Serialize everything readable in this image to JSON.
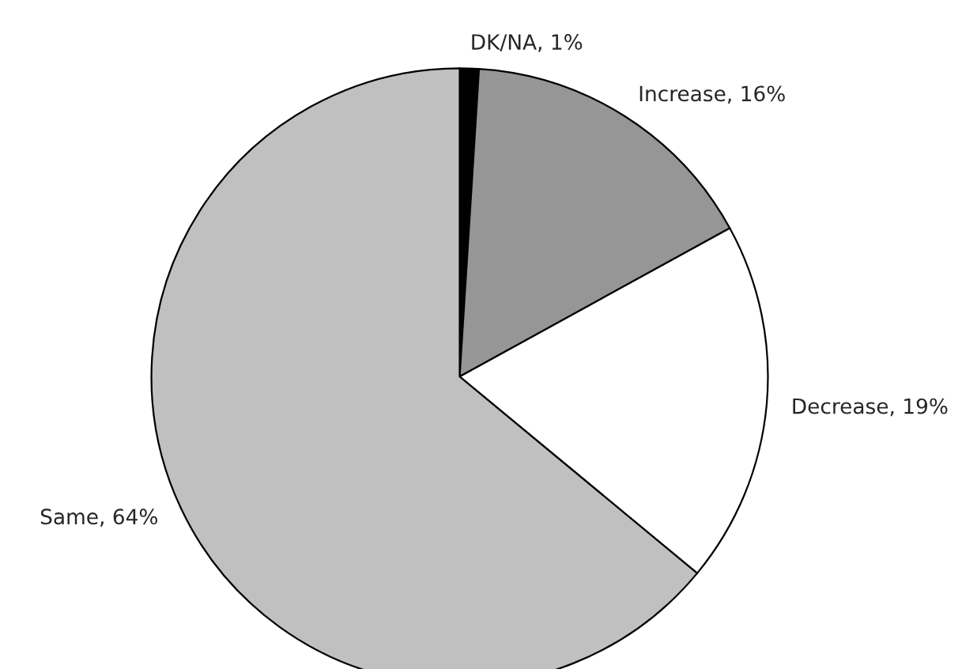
{
  "chart_data": {
    "type": "pie",
    "categories": [
      "DK/NA",
      "Increase",
      "Decrease",
      "Same"
    ],
    "values": [
      1,
      16,
      19,
      64
    ],
    "colors": [
      "#000000",
      "#969696",
      "#ffffff",
      "#c0c0c0"
    ],
    "value_labels": [
      "1%",
      "16%",
      "19%",
      "64%"
    ]
  }
}
